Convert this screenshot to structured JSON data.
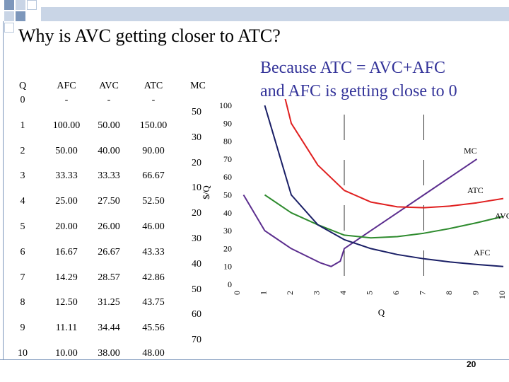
{
  "slide": {
    "title": "Why is AVC getting closer to ATC?",
    "subtitle_line1": "Because ATC = AVC+AFC",
    "subtitle_line2": "and AFC is getting close to 0",
    "page_number": "20",
    "colors": {
      "accent_dark": "#7d97bb",
      "accent_light": "#c9d5e6",
      "subtitle": "#333399"
    }
  },
  "table": {
    "headers": [
      "Q",
      "AFC",
      "AVC",
      "ATC",
      "MC"
    ],
    "rows": [
      [
        "0",
        "-",
        "-",
        "-"
      ],
      [
        "1",
        "100.00",
        "50.00",
        "150.00"
      ],
      [
        "2",
        "50.00",
        "40.00",
        "90.00"
      ],
      [
        "3",
        "33.33",
        "33.33",
        "66.67"
      ],
      [
        "4",
        "25.00",
        "27.50",
        "52.50"
      ],
      [
        "5",
        "20.00",
        "26.00",
        "46.00"
      ],
      [
        "6",
        "16.67",
        "26.67",
        "43.33"
      ],
      [
        "7",
        "14.29",
        "28.57",
        "42.86"
      ],
      [
        "8",
        "12.50",
        "31.25",
        "43.75"
      ],
      [
        "9",
        "11.11",
        "34.44",
        "45.56"
      ],
      [
        "10",
        "10.00",
        "38.00",
        "48.00"
      ]
    ],
    "mc_values": [
      "50",
      "30",
      "20",
      "10",
      "20",
      "30",
      "40",
      "50",
      "60",
      "70"
    ]
  },
  "chart_data": {
    "type": "line",
    "ylabel": "$/Q",
    "xlabel": "Q",
    "xlim": [
      0,
      10
    ],
    "ylim": [
      0,
      100
    ],
    "x_ticks": [
      "0",
      "1",
      "2",
      "3",
      "4",
      "5",
      "6",
      "7",
      "8",
      "9",
      "10"
    ],
    "y_ticks": [
      "0",
      "10",
      "20",
      "30",
      "40",
      "50",
      "60",
      "70",
      "80",
      "90",
      "100"
    ],
    "reference_lines_x": [
      4,
      7
    ],
    "series": [
      {
        "name": "MC",
        "color": "#5b2d8e",
        "points": [
          [
            0.2,
            50
          ],
          [
            1,
            30
          ],
          [
            2,
            20
          ],
          [
            3.1,
            12
          ],
          [
            3.5,
            10
          ],
          [
            3.85,
            13
          ],
          [
            4,
            20
          ],
          [
            5,
            30
          ],
          [
            6,
            40
          ],
          [
            7,
            50
          ],
          [
            8,
            60
          ],
          [
            9,
            70
          ]
        ]
      },
      {
        "name": "ATC",
        "color": "#e02020",
        "points": [
          [
            1,
            150
          ],
          [
            2,
            90
          ],
          [
            3,
            66.67
          ],
          [
            4,
            52.5
          ],
          [
            5,
            46
          ],
          [
            6,
            43.33
          ],
          [
            7,
            42.86
          ],
          [
            8,
            43.75
          ],
          [
            9,
            45.56
          ],
          [
            10,
            48
          ]
        ]
      },
      {
        "name": "AVC",
        "color": "#2e8b2e",
        "points": [
          [
            1,
            50
          ],
          [
            2,
            40
          ],
          [
            3,
            33.33
          ],
          [
            4,
            27.5
          ],
          [
            5,
            26
          ],
          [
            6,
            26.67
          ],
          [
            7,
            28.57
          ],
          [
            8,
            31.25
          ],
          [
            9,
            34.44
          ],
          [
            10,
            38
          ]
        ]
      },
      {
        "name": "AFC",
        "color": "#1a1f66",
        "points": [
          [
            1,
            100
          ],
          [
            2,
            50
          ],
          [
            3,
            33.33
          ],
          [
            4,
            25
          ],
          [
            5,
            20
          ],
          [
            6,
            16.67
          ],
          [
            7,
            14.29
          ],
          [
            8,
            12.5
          ],
          [
            9,
            11.11
          ],
          [
            10,
            10
          ]
        ]
      }
    ]
  }
}
